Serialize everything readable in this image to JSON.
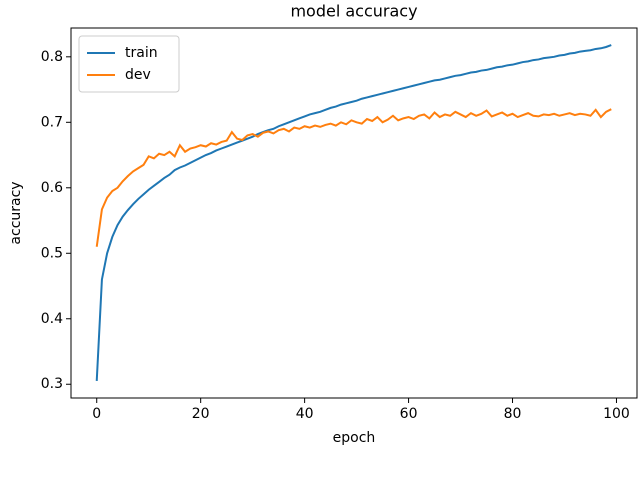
{
  "chart_data": {
    "type": "line",
    "title": "model accuracy",
    "x_label": "epoch",
    "y_label": "accuracy",
    "x": [
      0,
      1,
      2,
      3,
      4,
      5,
      6,
      7,
      8,
      9,
      10,
      11,
      12,
      13,
      14,
      15,
      16,
      17,
      18,
      19,
      20,
      21,
      22,
      23,
      24,
      25,
      26,
      27,
      28,
      29,
      30,
      31,
      32,
      33,
      34,
      35,
      36,
      37,
      38,
      39,
      40,
      41,
      42,
      43,
      44,
      45,
      46,
      47,
      48,
      49,
      50,
      51,
      52,
      53,
      54,
      55,
      56,
      57,
      58,
      59,
      60,
      61,
      62,
      63,
      64,
      65,
      66,
      67,
      68,
      69,
      70,
      71,
      72,
      73,
      74,
      75,
      76,
      77,
      78,
      79,
      80,
      81,
      82,
      83,
      84,
      85,
      86,
      87,
      88,
      89,
      90,
      91,
      92,
      93,
      94,
      95,
      96,
      97,
      98,
      99
    ],
    "series": [
      {
        "name": "train",
        "color": "#1f77b4",
        "values": [
          0.305,
          0.46,
          0.5,
          0.525,
          0.543,
          0.556,
          0.566,
          0.575,
          0.583,
          0.59,
          0.597,
          0.603,
          0.609,
          0.615,
          0.62,
          0.627,
          0.631,
          0.634,
          0.638,
          0.642,
          0.646,
          0.65,
          0.653,
          0.657,
          0.66,
          0.663,
          0.666,
          0.669,
          0.672,
          0.675,
          0.678,
          0.682,
          0.685,
          0.688,
          0.69,
          0.694,
          0.697,
          0.7,
          0.703,
          0.706,
          0.709,
          0.712,
          0.714,
          0.716,
          0.719,
          0.722,
          0.724,
          0.727,
          0.729,
          0.731,
          0.733,
          0.736,
          0.738,
          0.74,
          0.742,
          0.744,
          0.746,
          0.748,
          0.75,
          0.752,
          0.754,
          0.756,
          0.758,
          0.76,
          0.762,
          0.764,
          0.765,
          0.767,
          0.769,
          0.771,
          0.772,
          0.774,
          0.776,
          0.777,
          0.779,
          0.78,
          0.782,
          0.784,
          0.785,
          0.787,
          0.788,
          0.79,
          0.792,
          0.793,
          0.795,
          0.796,
          0.798,
          0.799,
          0.8,
          0.802,
          0.803,
          0.805,
          0.806,
          0.808,
          0.809,
          0.81,
          0.812,
          0.813,
          0.815,
          0.818
        ]
      },
      {
        "name": "dev",
        "color": "#ff7f0e",
        "values": [
          0.51,
          0.567,
          0.585,
          0.595,
          0.6,
          0.61,
          0.618,
          0.625,
          0.63,
          0.635,
          0.648,
          0.645,
          0.652,
          0.65,
          0.655,
          0.648,
          0.665,
          0.655,
          0.66,
          0.662,
          0.665,
          0.663,
          0.668,
          0.666,
          0.67,
          0.672,
          0.685,
          0.675,
          0.673,
          0.68,
          0.682,
          0.678,
          0.684,
          0.686,
          0.683,
          0.688,
          0.69,
          0.686,
          0.692,
          0.69,
          0.694,
          0.692,
          0.695,
          0.693,
          0.696,
          0.698,
          0.695,
          0.7,
          0.697,
          0.703,
          0.7,
          0.698,
          0.705,
          0.702,
          0.708,
          0.7,
          0.704,
          0.71,
          0.703,
          0.706,
          0.708,
          0.705,
          0.71,
          0.712,
          0.706,
          0.715,
          0.708,
          0.712,
          0.71,
          0.716,
          0.712,
          0.708,
          0.714,
          0.71,
          0.713,
          0.718,
          0.709,
          0.712,
          0.715,
          0.71,
          0.713,
          0.708,
          0.711,
          0.714,
          0.71,
          0.709,
          0.712,
          0.711,
          0.713,
          0.71,
          0.712,
          0.714,
          0.711,
          0.713,
          0.712,
          0.71,
          0.719,
          0.708,
          0.716,
          0.72
        ]
      }
    ],
    "xlim": [
      -4.95,
      103.95
    ],
    "ylim": [
      0.279,
      0.844
    ],
    "xticks": [
      0,
      20,
      40,
      60,
      80,
      100
    ],
    "yticks": [
      0.3,
      0.4,
      0.5,
      0.6,
      0.7,
      0.8
    ],
    "legend": "upper left"
  }
}
